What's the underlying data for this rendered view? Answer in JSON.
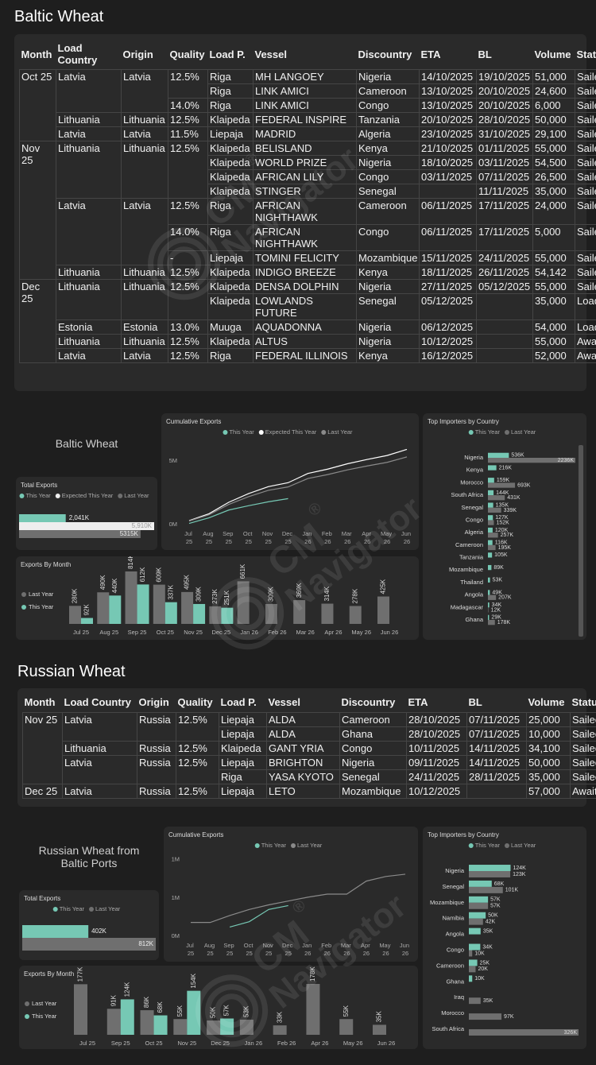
{
  "sections": [
    {
      "heading": "Baltic Wheat",
      "card_title": "Baltic Wheat"
    },
    {
      "heading": "Russian Wheat",
      "card_title": "Russian Wheat from Baltic Ports"
    }
  ],
  "watermark": {
    "brand": "CM",
    "symbol": "®",
    "name": "Navigator"
  },
  "tables": [
    {
      "columns": [
        "Month",
        "Load Country",
        "Origin",
        "Quality",
        "Load P.",
        "Vessel",
        "Discountry",
        "ETA",
        "BL",
        "Volume",
        "Status"
      ],
      "rows": [
        [
          "Oct 25",
          "Latvia",
          "Latvia",
          "12.5%",
          "Riga",
          "MH LANGOEY",
          "Nigeria",
          "14/10/2025",
          "19/10/2025",
          "51,000",
          "Sailed"
        ],
        [
          null,
          null,
          null,
          null,
          "Riga",
          "LINK AMICI",
          "Cameroon",
          "13/10/2025",
          "20/10/2025",
          "24,600",
          "Sailed"
        ],
        [
          null,
          null,
          null,
          "14.0%",
          "Riga",
          "LINK AMICI",
          "Congo",
          "13/10/2025",
          "20/10/2025",
          "6,000",
          "Sailed"
        ],
        [
          null,
          "Lithuania",
          "Lithuania",
          "12.5%",
          "Klaipeda",
          "FEDERAL INSPIRE",
          "Tanzania",
          "20/10/2025",
          "28/10/2025",
          "50,000",
          "Sailed"
        ],
        [
          null,
          "Latvia",
          "Latvia",
          "11.5%",
          "Liepaja",
          "MADRID",
          "Algeria",
          "23/10/2025",
          "31/10/2025",
          "29,100",
          "Sailed"
        ],
        [
          "Nov 25",
          "Lithuania",
          "Lithuania",
          "12.5%",
          "Klaipeda",
          "BELISLAND",
          "Kenya",
          "21/10/2025",
          "01/11/2025",
          "55,000",
          "Sailed"
        ],
        [
          null,
          null,
          null,
          null,
          "Klaipeda",
          "WORLD PRIZE",
          "Nigeria",
          "18/10/2025",
          "03/11/2025",
          "54,500",
          "Sailed"
        ],
        [
          null,
          null,
          null,
          null,
          "Klaipeda",
          "AFRICAN LILY",
          "Congo",
          "03/11/2025",
          "07/11/2025",
          "26,500",
          "Sailed"
        ],
        [
          null,
          null,
          null,
          null,
          "Klaipeda",
          "STINGER",
          "Senegal",
          null,
          "11/11/2025",
          "35,000",
          "Sailed"
        ],
        [
          null,
          "Latvia",
          "Latvia",
          "12.5%",
          "Riga",
          "AFRICAN NIGHTHAWK",
          "Cameroon",
          "06/11/2025",
          "17/11/2025",
          "24,000",
          "Sailed"
        ],
        [
          null,
          null,
          null,
          "14.0%",
          "Riga",
          "AFRICAN NIGHTHAWK",
          "Congo",
          "06/11/2025",
          "17/11/2025",
          "5,000",
          "Sailed"
        ],
        [
          null,
          null,
          null,
          "-",
          "Liepaja",
          "TOMINI FELICITY",
          "Mozambique",
          "15/11/2025",
          "24/11/2025",
          "55,000",
          "Sailed"
        ],
        [
          null,
          "Lithuania",
          "Lithuania",
          "12.5%",
          "Klaipeda",
          "INDIGO BREEZE",
          "Kenya",
          "18/11/2025",
          "26/11/2025",
          "54,142",
          "Sailed"
        ],
        [
          "Dec 25",
          "Lithuania",
          "Lithuania",
          "12.5%",
          "Klaipeda",
          "DENSA DOLPHIN",
          "Nigeria",
          "27/11/2025",
          "05/12/2025",
          "55,000",
          "Sailed"
        ],
        [
          null,
          null,
          null,
          null,
          "Klaipeda",
          "LOWLANDS FUTURE",
          "Senegal",
          "05/12/2025",
          null,
          "35,000",
          "Loading"
        ],
        [
          null,
          "Estonia",
          "Estonia",
          "13.0%",
          "Muuga",
          "AQUADONNA",
          "Nigeria",
          "06/12/2025",
          null,
          "54,000",
          "Loading"
        ],
        [
          null,
          "Lithuania",
          "Lithuania",
          "12.5%",
          "Klaipeda",
          "ALTUS",
          "Nigeria",
          "10/12/2025",
          null,
          "55,000",
          "Awaited"
        ],
        [
          null,
          "Latvia",
          "Latvia",
          "12.5%",
          "Riga",
          "FEDERAL ILLINOIS",
          "Kenya",
          "16/12/2025",
          null,
          "52,000",
          "Awaited"
        ]
      ]
    },
    {
      "columns": [
        "Month",
        "Load Country",
        "Origin",
        "Quality",
        "Load P.",
        "Vessel",
        "Discountry",
        "ETA",
        "BL",
        "Volume",
        "Status"
      ],
      "rows": [
        [
          "Nov 25",
          "Latvia",
          "Russia",
          "12.5%",
          "Liepaja",
          "ALDA",
          "Cameroon",
          "28/10/2025",
          "07/11/2025",
          "25,000",
          "Sailed"
        ],
        [
          null,
          null,
          null,
          null,
          "Liepaja",
          "ALDA",
          "Ghana",
          "28/10/2025",
          "07/11/2025",
          "10,000",
          "Sailed"
        ],
        [
          null,
          "Lithuania",
          "Russia",
          "12.5%",
          "Klaipeda",
          "GANT YRIA",
          "Congo",
          "10/11/2025",
          "14/11/2025",
          "34,100",
          "Sailed"
        ],
        [
          null,
          "Latvia",
          "Russia",
          "12.5%",
          "Liepaja",
          "BRIGHTON",
          "Nigeria",
          "09/11/2025",
          "14/11/2025",
          "50,000",
          "Sailed"
        ],
        [
          null,
          null,
          null,
          null,
          "Riga",
          "YASA KYOTO",
          "Senegal",
          "24/11/2025",
          "28/11/2025",
          "35,000",
          "Sailed"
        ],
        [
          "Dec 25",
          "Latvia",
          "Russia",
          "12.5%",
          "Liepaja",
          "LETO",
          "Mozambique",
          "10/12/2025",
          null,
          "57,000",
          "Awaited"
        ]
      ]
    }
  ],
  "chart_data": [
    {
      "type": "bar",
      "horizontal": true,
      "title": "Total Exports",
      "legend": "top",
      "series": [
        {
          "name": "This Year",
          "color": "#76c8b4",
          "values": [
            2041
          ],
          "value_labels": [
            "2,041K"
          ]
        },
        {
          "name": "Expected This Year",
          "color": "#eeeeee",
          "values": [
            5910
          ],
          "value_labels": [
            "5,910K"
          ]
        },
        {
          "name": "Last Year",
          "color": "#6f6f6f",
          "values": [
            5315
          ],
          "value_labels": [
            "5315K"
          ]
        }
      ]
    },
    {
      "type": "line",
      "title": "Cumulative Exports",
      "legend": "top",
      "categories": [
        "Jul 25",
        "Aug 25",
        "Sep 25",
        "Oct 25",
        "Nov 25",
        "Dec 25",
        "Jan 26",
        "Feb 26",
        "Mar 26",
        "Apr 26",
        "May 26",
        "Jun 26"
      ],
      "ylim": [
        0,
        6.25
      ],
      "yticks": [
        {
          "value": 0,
          "label": "0M"
        },
        {
          "value": 5,
          "label": "5M"
        }
      ],
      "series": [
        {
          "name": "This Year",
          "color": "#76c8b4",
          "values": [
            0.09,
            0.53,
            1.14,
            1.48,
            1.79,
            2.04,
            null,
            null,
            null,
            null,
            null,
            null
          ]
        },
        {
          "name": "Expected This Year",
          "color": "#ffffff",
          "values": [
            0.31,
            0.85,
            1.75,
            2.43,
            2.98,
            3.29,
            4.02,
            4.36,
            4.78,
            5.12,
            5.43,
            5.91
          ]
        },
        {
          "name": "Last Year",
          "color": "#8a8a8a",
          "values": [
            0.28,
            0.77,
            1.58,
            2.19,
            2.69,
            2.96,
            3.62,
            3.93,
            4.3,
            4.61,
            4.89,
            5.32
          ]
        }
      ]
    },
    {
      "type": "bar",
      "horizontal": true,
      "title": "Top Importers by Country",
      "legend": "top",
      "categories": [
        "Nigeria",
        "Kenya",
        "Morocco",
        "South Africa",
        "Senegal",
        "Congo",
        "Algeria",
        "Cameroon",
        "Tanzania",
        "Mozambique",
        "Thailand",
        "Angola",
        "Madagascar",
        "Ghana"
      ],
      "series": [
        {
          "name": "This Year",
          "color": "#76c8b4",
          "values": [
            536,
            216,
            159,
            144,
            135,
            127,
            120,
            116,
            105,
            89,
            53,
            49,
            34,
            29
          ],
          "value_labels": [
            "536K",
            "216K",
            "159K",
            "144K",
            "135K",
            "127K",
            "120K",
            "116K",
            "105K",
            "89K",
            "53K",
            "49K",
            "34K",
            "29K"
          ]
        },
        {
          "name": "Last Year",
          "color": "#6f6f6f",
          "values": [
            2236,
            null,
            693,
            431,
            339,
            152,
            257,
            195,
            null,
            null,
            null,
            207,
            12,
            178
          ],
          "value_labels": [
            "2236K",
            null,
            "693K",
            "431K",
            "339K",
            "152K",
            "257K",
            "195K",
            null,
            null,
            null,
            "207K",
            "12K",
            "178K"
          ]
        }
      ]
    },
    {
      "type": "bar",
      "horizontal": false,
      "title": "Exports By Month",
      "legend": "left",
      "categories": [
        "Jul 25",
        "Aug 25",
        "Sep 25",
        "Oct 25",
        "Nov 25",
        "Dec 25",
        "Jan 26",
        "Feb 26",
        "Mar 26",
        "Apr 26",
        "May 26",
        "Jun 26"
      ],
      "series": [
        {
          "name": "Last Year",
          "color": "#6f6f6f",
          "values": [
            280,
            490,
            814,
            609,
            495,
            273,
            661,
            309,
            369,
            314,
            278,
            425
          ],
          "value_labels": [
            "280K",
            "490K",
            "814K",
            "609K",
            "495K",
            "273K",
            "661K",
            "309K",
            "369K",
            "314K",
            "278K",
            "425K"
          ]
        },
        {
          "name": "This Year",
          "color": "#76c8b4",
          "values": [
            92,
            440,
            612,
            337,
            309,
            251,
            null,
            null,
            null,
            null,
            null,
            null
          ],
          "value_labels": [
            "92K",
            "440K",
            "612K",
            "337K",
            "309K",
            "251K",
            null,
            null,
            null,
            null,
            null,
            null
          ]
        }
      ]
    },
    {
      "type": "bar",
      "horizontal": true,
      "title": "Total Exports",
      "legend": "top",
      "series": [
        {
          "name": "This Year",
          "color": "#76c8b4",
          "values": [
            402
          ],
          "value_labels": [
            "402K"
          ]
        },
        {
          "name": "Last Year",
          "color": "#6f6f6f",
          "values": [
            812
          ],
          "value_labels": [
            "812K"
          ]
        }
      ]
    },
    {
      "type": "line",
      "title": "Cumulative Exports",
      "legend": "top",
      "categories": [
        "Jul 25",
        "Aug 25",
        "Sep 25",
        "Oct 25",
        "Nov 25",
        "Dec 25",
        "Jan 26",
        "Feb 26",
        "Mar 26",
        "Apr 26",
        "May 26",
        "Jun 26"
      ],
      "ylim": [
        0,
        1.1
      ],
      "yticks": [
        {
          "value": 0,
          "label": "0M"
        },
        {
          "value": 0.5,
          "label": "1M"
        },
        {
          "value": 1,
          "label": "1M"
        }
      ],
      "series": [
        {
          "name": "This Year",
          "color": "#76c8b4",
          "values": [
            null,
            null,
            0.12,
            0.19,
            0.35,
            0.4,
            null,
            null,
            null,
            null,
            null,
            null
          ]
        },
        {
          "name": "Last Year",
          "color": "#8a8a8a",
          "values": [
            0.18,
            0.18,
            0.27,
            0.35,
            0.41,
            0.46,
            0.51,
            0.55,
            0.55,
            0.72,
            0.78,
            0.81
          ]
        }
      ]
    },
    {
      "type": "bar",
      "horizontal": true,
      "title": "Top Importers by Country",
      "legend": "top",
      "categories": [
        "Nigeria",
        "Senegal",
        "Mozambique",
        "Namibia",
        "Angola",
        "Congo",
        "Cameroon",
        "Ghana",
        "Iraq",
        "Morocco",
        "South Africa"
      ],
      "series": [
        {
          "name": "This Year",
          "color": "#76c8b4",
          "values": [
            124,
            68,
            57,
            50,
            35,
            34,
            25,
            10,
            null,
            null,
            null
          ],
          "value_labels": [
            "124K",
            "68K",
            "57K",
            "50K",
            "35K",
            "34K",
            "25K",
            "10K",
            null,
            null,
            null
          ]
        },
        {
          "name": "Last Year",
          "color": "#6f6f6f",
          "values": [
            123,
            101,
            57,
            42,
            null,
            10,
            20,
            null,
            35,
            97,
            326
          ],
          "value_labels": [
            "123K",
            "101K",
            "57K",
            "42K",
            null,
            "10K",
            "20K",
            null,
            "35K",
            "97K",
            "326K"
          ]
        }
      ]
    },
    {
      "type": "bar",
      "horizontal": false,
      "title": "Exports By Month",
      "legend": "left",
      "categories": [
        "Jul 25",
        "Sep 25",
        "Oct 25",
        "Nov 25",
        "Dec 25",
        "Jan 26",
        "Feb 26",
        "Apr 26",
        "May 26",
        "Jun 26"
      ],
      "series": [
        {
          "name": "Last Year",
          "color": "#6f6f6f",
          "values": [
            177,
            91,
            86,
            55,
            50,
            53,
            33,
            178,
            55,
            35
          ],
          "value_labels": [
            "177K",
            "91K",
            "86K",
            "55K",
            "50K",
            "53K",
            "33K",
            "178K",
            "55K",
            "35K"
          ]
        },
        {
          "name": "This Year",
          "color": "#76c8b4",
          "values": [
            null,
            124,
            68,
            154,
            57,
            null,
            null,
            null,
            null,
            null
          ],
          "value_labels": [
            null,
            "124K",
            "68K",
            "154K",
            "57K",
            null,
            null,
            null,
            null,
            null
          ]
        }
      ]
    }
  ]
}
